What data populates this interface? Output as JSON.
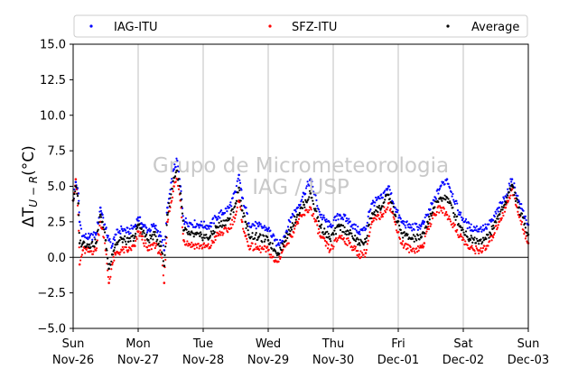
{
  "chart_data": {
    "type": "scatter",
    "title": "",
    "xlabel": "",
    "ylabel": "ΔT",
    "ylabel_subscript": "U − R",
    "ylabel_unit": "(°C)",
    "ylim": [
      -5.0,
      15.0
    ],
    "yticks": [
      -5.0,
      -2.5,
      0.0,
      2.5,
      5.0,
      7.5,
      10.0,
      12.5,
      15.0
    ],
    "ytick_labels": [
      "−5.0",
      "−2.5",
      "0.0",
      "2.5",
      "5.0",
      "7.5",
      "10.0",
      "12.5",
      "15.0"
    ],
    "x_unit": "days since Sun Nov-26 00:00",
    "xlim": [
      0,
      7
    ],
    "xticks": [
      {
        "day": "Sun",
        "date": "Nov-26"
      },
      {
        "day": "Mon",
        "date": "Nov-27"
      },
      {
        "day": "Tue",
        "date": "Nov-28"
      },
      {
        "day": "Wed",
        "date": "Nov-29"
      },
      {
        "day": "Thu",
        "date": "Nov-30"
      },
      {
        "day": "Fri",
        "date": "Dec-01"
      },
      {
        "day": "Sat",
        "date": "Dec-02"
      },
      {
        "day": "Sun",
        "date": "Dec-03"
      }
    ],
    "grid": "vertical at day boundaries",
    "zero_line": true,
    "legend_position": "top, above plot",
    "watermark": [
      "Grupo de Micrometeorologia",
      "IAG / USP"
    ],
    "series": [
      {
        "name": "IAG-ITU",
        "color": "#0000ff",
        "x": [
          0.0,
          0.04,
          0.08,
          0.1,
          0.15,
          0.25,
          0.35,
          0.42,
          0.45,
          0.5,
          0.55,
          0.6,
          0.65,
          0.75,
          0.85,
          0.95,
          1.0,
          1.05,
          1.15,
          1.25,
          1.35,
          1.4,
          1.45,
          1.55,
          1.6,
          1.65,
          1.7,
          1.8,
          1.95,
          2.1,
          2.2,
          2.4,
          2.5,
          2.55,
          2.6,
          2.65,
          2.7,
          2.85,
          3.0,
          3.1,
          3.15,
          3.25,
          3.35,
          3.45,
          3.55,
          3.65,
          3.8,
          3.95,
          4.1,
          4.25,
          4.4,
          4.5,
          4.55,
          4.6,
          4.75,
          4.85,
          4.95,
          5.05,
          5.2,
          5.35,
          5.4,
          5.45,
          5.55,
          5.65,
          5.75,
          5.95,
          6.1,
          6.25,
          6.35,
          6.45,
          6.55,
          6.65,
          6.75,
          6.85,
          7.0
        ],
        "y": [
          4.0,
          5.3,
          4.5,
          2.5,
          1.5,
          1.4,
          1.6,
          3.5,
          3.0,
          2.0,
          1.2,
          0.8,
          1.6,
          2.0,
          1.8,
          2.2,
          2.8,
          2.4,
          1.9,
          2.2,
          1.5,
          0.5,
          3.5,
          6.2,
          6.8,
          5.0,
          2.6,
          2.4,
          2.3,
          2.2,
          2.8,
          3.5,
          4.6,
          5.8,
          4.2,
          3.5,
          2.4,
          2.2,
          2.0,
          1.2,
          0.9,
          1.5,
          2.8,
          3.5,
          4.5,
          5.5,
          3.0,
          2.2,
          3.0,
          2.5,
          1.8,
          2.0,
          3.2,
          3.8,
          4.2,
          5.0,
          3.5,
          2.5,
          2.1,
          2.2,
          2.5,
          3.0,
          4.0,
          5.0,
          5.5,
          3.0,
          2.1,
          2.0,
          2.1,
          2.6,
          3.5,
          4.3,
          5.5,
          4.0,
          2.3
        ]
      },
      {
        "name": "SFZ-ITU",
        "color": "#ff0000",
        "x": [
          0.0,
          0.04,
          0.08,
          0.1,
          0.15,
          0.25,
          0.35,
          0.42,
          0.45,
          0.5,
          0.55,
          0.6,
          0.65,
          0.75,
          0.85,
          0.95,
          1.0,
          1.05,
          1.15,
          1.25,
          1.35,
          1.4,
          1.45,
          1.55,
          1.6,
          1.65,
          1.7,
          1.8,
          1.95,
          2.1,
          2.2,
          2.4,
          2.5,
          2.55,
          2.6,
          2.65,
          2.7,
          2.85,
          3.0,
          3.1,
          3.15,
          3.25,
          3.35,
          3.45,
          3.55,
          3.65,
          3.8,
          3.95,
          4.1,
          4.25,
          4.4,
          4.5,
          4.55,
          4.6,
          4.75,
          4.85,
          4.95,
          5.05,
          5.2,
          5.35,
          5.4,
          5.45,
          5.55,
          5.65,
          5.75,
          5.95,
          6.1,
          6.25,
          6.35,
          6.45,
          6.55,
          6.65,
          6.75,
          6.85,
          7.0
        ],
        "y": [
          4.0,
          5.5,
          3.0,
          -0.5,
          0.5,
          0.4,
          0.5,
          2.5,
          2.0,
          0.5,
          -1.8,
          -0.5,
          0.2,
          0.5,
          0.5,
          0.8,
          1.8,
          1.5,
          0.5,
          1.0,
          0.2,
          -1.8,
          2.5,
          5.0,
          5.5,
          4.0,
          1.2,
          0.9,
          0.8,
          0.7,
          1.5,
          2.0,
          3.0,
          4.0,
          2.5,
          1.5,
          0.8,
          0.6,
          0.5,
          -0.3,
          -0.3,
          0.8,
          1.5,
          2.5,
          3.0,
          3.5,
          1.5,
          0.5,
          1.5,
          1.0,
          0.2,
          0.3,
          1.5,
          2.5,
          3.0,
          3.8,
          2.5,
          1.0,
          0.5,
          0.7,
          1.0,
          2.0,
          3.0,
          3.5,
          3.0,
          1.5,
          0.6,
          0.5,
          0.6,
          1.5,
          2.5,
          3.5,
          4.8,
          3.0,
          1.0
        ]
      },
      {
        "name": "Average",
        "color": "#000000",
        "x": [
          0.0,
          0.04,
          0.08,
          0.1,
          0.15,
          0.25,
          0.35,
          0.42,
          0.45,
          0.5,
          0.55,
          0.6,
          0.65,
          0.75,
          0.85,
          0.95,
          1.0,
          1.05,
          1.15,
          1.25,
          1.35,
          1.4,
          1.45,
          1.55,
          1.6,
          1.65,
          1.7,
          1.8,
          1.95,
          2.1,
          2.2,
          2.4,
          2.5,
          2.55,
          2.6,
          2.65,
          2.7,
          2.85,
          3.0,
          3.1,
          3.15,
          3.25,
          3.35,
          3.45,
          3.55,
          3.65,
          3.8,
          3.95,
          4.1,
          4.25,
          4.4,
          4.5,
          4.55,
          4.6,
          4.75,
          4.85,
          4.95,
          5.05,
          5.2,
          5.35,
          5.4,
          5.45,
          5.55,
          5.65,
          5.75,
          5.95,
          6.1,
          6.25,
          6.35,
          6.45,
          6.55,
          6.65,
          6.75,
          6.85,
          7.0
        ],
        "y": [
          4.0,
          5.0,
          3.8,
          1.0,
          1.0,
          0.9,
          1.0,
          3.0,
          2.5,
          1.2,
          -0.8,
          0.2,
          0.9,
          1.3,
          1.1,
          1.5,
          2.3,
          2.0,
          1.2,
          1.6,
          0.8,
          -0.6,
          3.0,
          5.6,
          6.1,
          4.5,
          1.9,
          1.6,
          1.5,
          1.4,
          2.1,
          2.7,
          3.8,
          4.9,
          3.3,
          2.5,
          1.6,
          1.4,
          1.2,
          0.5,
          0.3,
          1.1,
          2.1,
          3.0,
          3.7,
          4.5,
          2.2,
          1.3,
          2.2,
          1.7,
          1.0,
          1.1,
          2.3,
          3.1,
          3.6,
          4.4,
          3.0,
          1.7,
          1.3,
          1.4,
          1.7,
          2.5,
          3.5,
          4.2,
          4.2,
          2.2,
          1.3,
          1.2,
          1.3,
          2.0,
          3.0,
          3.9,
          5.1,
          3.5,
          1.6
        ]
      }
    ]
  }
}
